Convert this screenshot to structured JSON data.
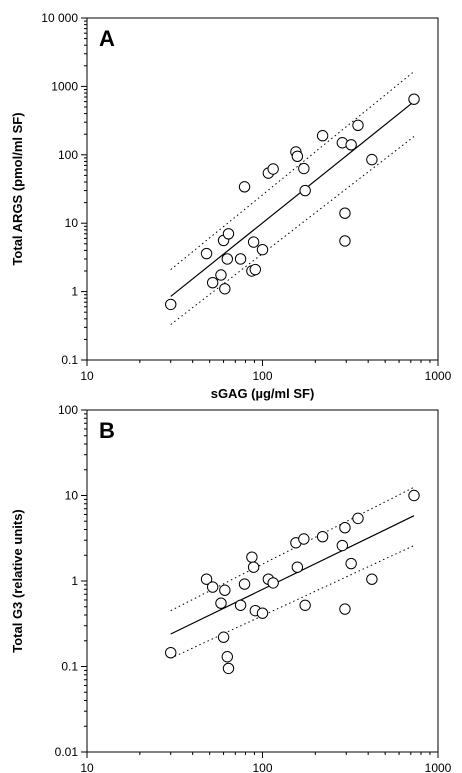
{
  "chart_data": [
    {
      "type": "scatter",
      "panel_label": "A",
      "title": "",
      "xlabel": "sGAG (µg/ml SF)",
      "ylabel": "Total ARGS (pmol/ml SF)",
      "x_scale": "log",
      "y_scale": "log",
      "xlim": [
        10,
        1000
      ],
      "ylim": [
        0.1,
        10000
      ],
      "x_ticks": [
        "10",
        "100",
        "1000"
      ],
      "y_ticks": [
        "0.1",
        "1",
        "10",
        "100",
        "1000",
        "10 000"
      ],
      "grid": false,
      "legend": "none",
      "series": [
        {
          "points": [
            [
              30,
              0.65
            ],
            [
              48,
              3.6
            ],
            [
              52,
              1.35
            ],
            [
              58,
              1.75
            ],
            [
              60,
              5.6
            ],
            [
              61,
              1.1
            ],
            [
              63,
              3.0
            ],
            [
              64,
              7.0
            ],
            [
              75,
              3.0
            ],
            [
              79,
              34
            ],
            [
              87,
              2.0
            ],
            [
              89,
              5.3
            ],
            [
              91,
              2.1
            ],
            [
              100,
              4.1
            ],
            [
              108,
              54
            ],
            [
              115,
              62
            ],
            [
              155,
              110
            ],
            [
              158,
              95
            ],
            [
              172,
              63
            ],
            [
              175,
              30
            ],
            [
              220,
              190
            ],
            [
              285,
              150
            ],
            [
              295,
              14
            ],
            [
              295,
              5.5
            ],
            [
              320,
              140
            ],
            [
              350,
              270
            ],
            [
              420,
              85
            ],
            [
              730,
              650
            ]
          ]
        }
      ],
      "fit_line": {
        "x": [
          30,
          730
        ],
        "y": [
          0.85,
          600
        ]
      },
      "confidence_band": {
        "upper": {
          "x": [
            30,
            730
          ],
          "y": [
            2.1,
            1650
          ]
        },
        "lower": {
          "x": [
            30,
            730
          ],
          "y": [
            0.33,
            185
          ]
        }
      }
    },
    {
      "type": "scatter",
      "panel_label": "B",
      "title": "",
      "xlabel": "sGAG (µg/ml SF)",
      "ylabel": "Total G3 (relative units)",
      "x_scale": "log",
      "y_scale": "log",
      "xlim": [
        10,
        1000
      ],
      "ylim": [
        0.01,
        100
      ],
      "x_ticks": [
        "10",
        "100",
        "1000"
      ],
      "y_ticks": [
        "0.01",
        "0.1",
        "1",
        "10",
        "100"
      ],
      "grid": false,
      "legend": "none",
      "series": [
        {
          "points": [
            [
              30,
              0.145
            ],
            [
              48,
              1.05
            ],
            [
              52,
              0.85
            ],
            [
              58,
              0.55
            ],
            [
              60,
              0.22
            ],
            [
              61,
              0.78
            ],
            [
              63,
              0.13
            ],
            [
              64,
              0.095
            ],
            [
              75,
              0.52
            ],
            [
              79,
              0.92
            ],
            [
              87,
              1.9
            ],
            [
              89,
              1.45
            ],
            [
              91,
              0.45
            ],
            [
              100,
              0.42
            ],
            [
              108,
              1.05
            ],
            [
              115,
              0.95
            ],
            [
              155,
              2.8
            ],
            [
              158,
              1.45
            ],
            [
              172,
              3.1
            ],
            [
              175,
              0.52
            ],
            [
              220,
              3.3
            ],
            [
              285,
              2.6
            ],
            [
              295,
              4.2
            ],
            [
              295,
              0.47
            ],
            [
              320,
              1.6
            ],
            [
              350,
              5.4
            ],
            [
              420,
              1.05
            ],
            [
              730,
              10
            ]
          ]
        }
      ],
      "fit_line": {
        "x": [
          30,
          730
        ],
        "y": [
          0.24,
          5.8
        ]
      },
      "confidence_band": {
        "upper": {
          "x": [
            30,
            730
          ],
          "y": [
            0.45,
            12.5
          ]
        },
        "lower": {
          "x": [
            30,
            730
          ],
          "y": [
            0.125,
            2.6
          ]
        }
      }
    }
  ]
}
